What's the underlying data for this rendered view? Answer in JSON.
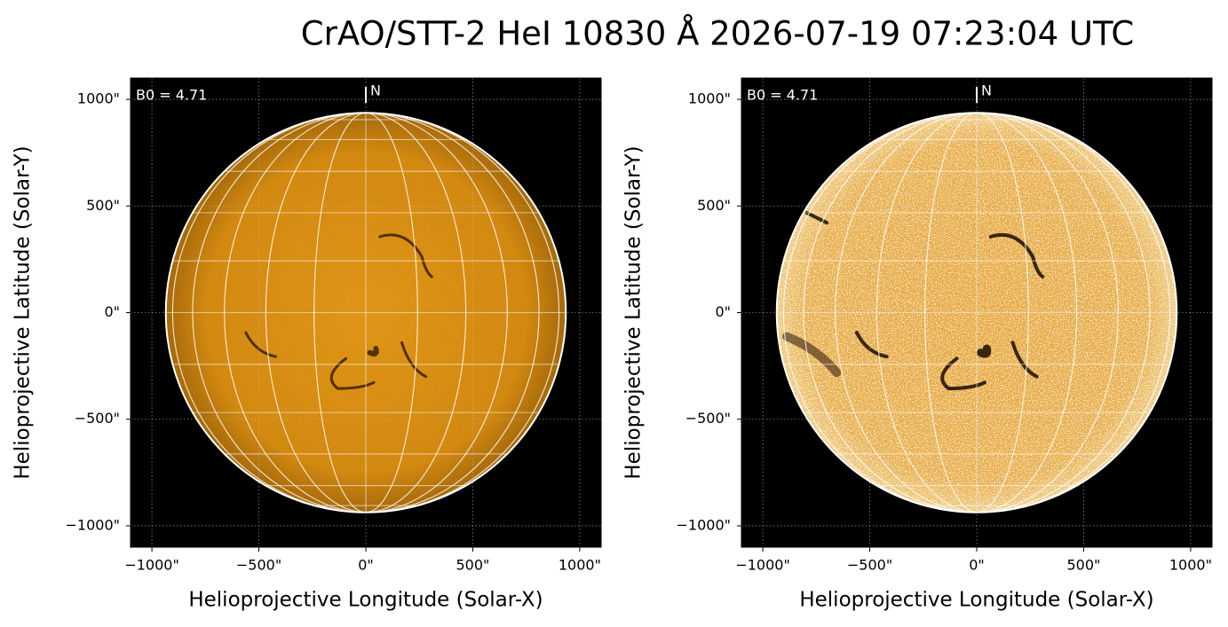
{
  "title": "CrAO/STT-2 HeI 10830 Å 2026-07-19 07:23:04 UTC",
  "chart_data": [
    {
      "type": "image",
      "xlabel": "Helioprojective Longitude (Solar-X)",
      "ylabel": "Helioprojective Latitude (Solar-Y)",
      "xlim": [
        -1100,
        1100
      ],
      "ylim": [
        -1100,
        1100
      ],
      "xticks": [
        {
          "value": -1000,
          "label": "−1000\""
        },
        {
          "value": -500,
          "label": "−500\""
        },
        {
          "value": 0,
          "label": "0\""
        },
        {
          "value": 500,
          "label": "500\""
        },
        {
          "value": 1000,
          "label": "1000\""
        }
      ],
      "yticks": [
        {
          "value": -1000,
          "label": "−1000\""
        },
        {
          "value": -500,
          "label": "−500\""
        },
        {
          "value": 0,
          "label": "0\""
        },
        {
          "value": 500,
          "label": "500\""
        },
        {
          "value": 1000,
          "label": "1000\""
        }
      ],
      "grid": true,
      "color": "#d68a0c",
      "annotations": [
        "B0 = 4.71",
        "N"
      ]
    },
    {
      "type": "image",
      "xlabel": "Helioprojective Longitude (Solar-X)",
      "ylabel": "Helioprojective Latitude (Solar-Y)",
      "xlim": [
        -1100,
        1100
      ],
      "ylim": [
        -1100,
        1100
      ],
      "xticks": [
        {
          "value": -1000,
          "label": "−1000\""
        },
        {
          "value": -500,
          "label": "−500\""
        },
        {
          "value": 0,
          "label": "0\""
        },
        {
          "value": 500,
          "label": "500\""
        },
        {
          "value": 1000,
          "label": "1000\""
        }
      ],
      "yticks": [
        {
          "value": -1000,
          "label": "−1000\""
        },
        {
          "value": -500,
          "label": "−500\""
        },
        {
          "value": 0,
          "label": "0\""
        },
        {
          "value": 500,
          "label": "500\""
        },
        {
          "value": 1000,
          "label": "1000\""
        }
      ],
      "grid": true,
      "color": "#e3a235",
      "annotations": [
        "B0 = 4.71",
        "N"
      ]
    }
  ]
}
